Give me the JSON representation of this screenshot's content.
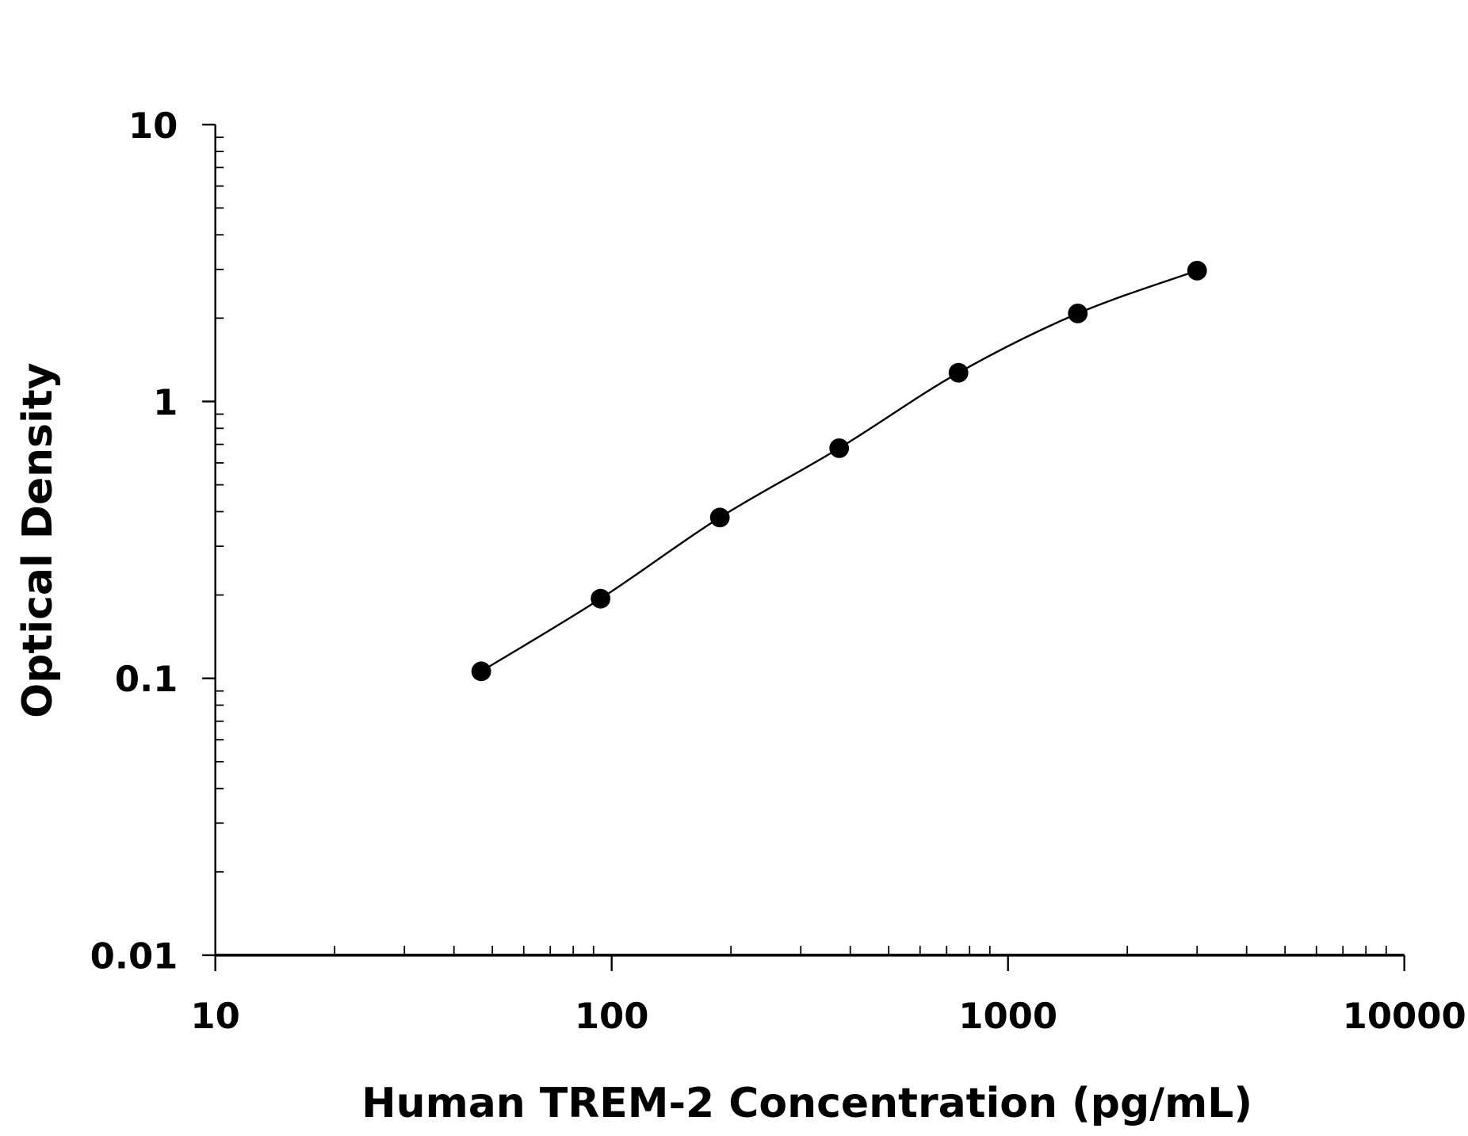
{
  "chart_data": {
    "type": "scatter",
    "title": "",
    "xlabel": "Human TREM-2 Concentration (pg/mL)",
    "ylabel": "Optical Density",
    "xscale": "log",
    "yscale": "log",
    "xlim": [
      10,
      10000
    ],
    "ylim": [
      0.01,
      10
    ],
    "x_tick_labels": [
      "10",
      "100",
      "1000",
      "10000"
    ],
    "y_tick_labels": [
      "0.01",
      "0.1",
      "1",
      "10"
    ],
    "grid": false,
    "fit_curve": true,
    "marker_color": "#000000",
    "series": [
      {
        "x": [
          46.875,
          93.75,
          187.5,
          375,
          750,
          1500,
          3000
        ],
        "y": [
          0.106,
          0.194,
          0.381,
          0.678,
          1.27,
          2.08,
          2.97
        ]
      }
    ]
  }
}
